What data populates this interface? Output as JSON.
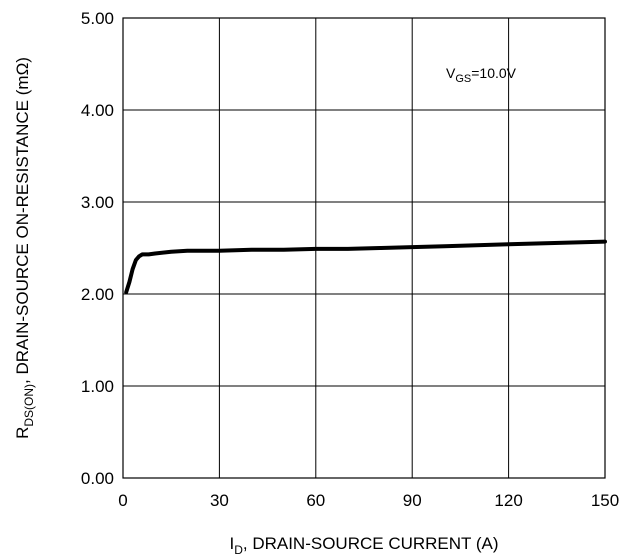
{
  "chart_data": {
    "type": "line",
    "xlabel": {
      "main": "I",
      "sub": "D",
      "rest": ", DRAIN-SOURCE CURRENT (A)"
    },
    "ylabel": {
      "main": "R",
      "sub": "DS(ON)",
      "rest": ", DRAIN-SOURCE ON-RESISTANCE (mΩ)"
    },
    "annotation": {
      "main": "V",
      "sub": "GS",
      "rest": "=10.0V"
    },
    "xlim": [
      0,
      150
    ],
    "ylim": [
      0,
      5
    ],
    "x_ticks": [
      0,
      30,
      60,
      90,
      120,
      150
    ],
    "x_tick_labels": [
      "0",
      "30",
      "60",
      "90",
      "120",
      "150"
    ],
    "y_ticks": [
      0,
      1,
      2,
      3,
      4,
      5
    ],
    "y_tick_labels": [
      "0.00",
      "1.00",
      "2.00",
      "3.00",
      "4.00",
      "5.00"
    ],
    "grid": true,
    "series": [
      {
        "x": [
          1,
          2,
          3,
          4,
          5,
          6,
          8,
          10,
          15,
          20,
          30,
          40,
          50,
          60,
          70,
          80,
          90,
          100,
          110,
          120,
          130,
          140,
          150
        ],
        "y": [
          2.02,
          2.13,
          2.27,
          2.37,
          2.41,
          2.43,
          2.43,
          2.44,
          2.46,
          2.47,
          2.47,
          2.48,
          2.48,
          2.49,
          2.49,
          2.5,
          2.51,
          2.52,
          2.53,
          2.54,
          2.55,
          2.56,
          2.57
        ]
      }
    ]
  }
}
